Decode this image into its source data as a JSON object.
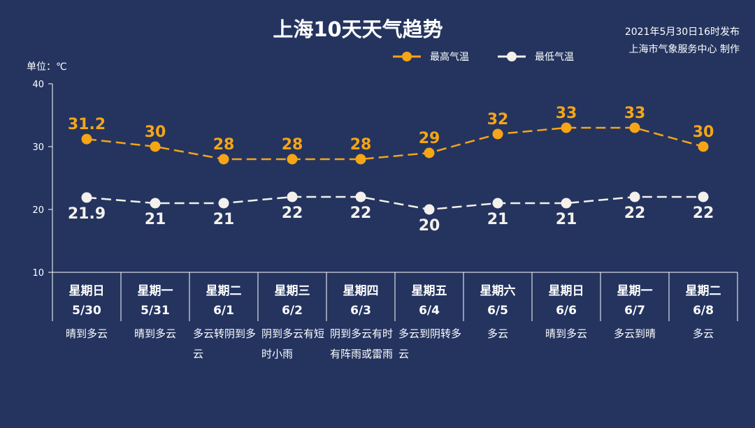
{
  "header": {
    "title": "上海10天天气趋势",
    "issued": "2021年5月30日16时发布",
    "producer": "上海市气象服务中心 制作",
    "unit_label": "单位：℃"
  },
  "colors": {
    "background": "#24345f",
    "high": "#f5a516",
    "low": "#f4f0ec",
    "axis": "#ffffff"
  },
  "chart_data": {
    "type": "line",
    "ylim": [
      10,
      40
    ],
    "yticks": [
      10,
      20,
      30,
      40
    ],
    "ylabel": "单位：℃",
    "legend_position": "top-right",
    "categories": [
      {
        "day": "星期日",
        "date": "5/30",
        "weather": "晴到多云"
      },
      {
        "day": "星期一",
        "date": "5/31",
        "weather": "晴到多云"
      },
      {
        "day": "星期二",
        "date": "6/1",
        "weather": "多云转阴到多云"
      },
      {
        "day": "星期三",
        "date": "6/2",
        "weather": "阴到多云有短时小雨"
      },
      {
        "day": "星期四",
        "date": "6/3",
        "weather": "阴到多云有时有阵雨或雷雨"
      },
      {
        "day": "星期五",
        "date": "6/4",
        "weather": "多云到阴转多云"
      },
      {
        "day": "星期六",
        "date": "6/5",
        "weather": "多云"
      },
      {
        "day": "星期日",
        "date": "6/6",
        "weather": "晴到多云"
      },
      {
        "day": "星期一",
        "date": "6/7",
        "weather": "多云到晴"
      },
      {
        "day": "星期二",
        "date": "6/8",
        "weather": "多云"
      }
    ],
    "series": [
      {
        "name": "最高气温",
        "values": [
          31.2,
          30,
          28,
          28,
          28,
          29,
          32,
          33,
          33,
          30
        ],
        "labels": [
          "31.2",
          "30",
          "28",
          "28",
          "28",
          "29",
          "32",
          "33",
          "33",
          "30"
        ]
      },
      {
        "name": "最低气温",
        "values": [
          21.9,
          21,
          21,
          22,
          22,
          20,
          21,
          21,
          22,
          22
        ],
        "labels": [
          "21.9",
          "21",
          "21",
          "22",
          "22",
          "20",
          "21",
          "21",
          "22",
          "22"
        ]
      }
    ]
  }
}
